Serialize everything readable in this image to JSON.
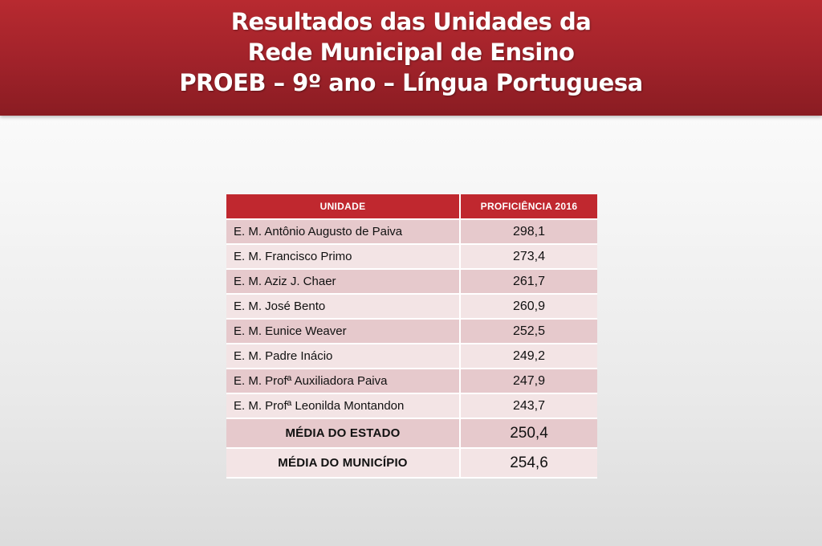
{
  "slide": {
    "title_lines": [
      "Resultados das Unidades da",
      "Rede Municipal de Ensino",
      "PROEB – 9º ano – Língua Portuguesa"
    ]
  },
  "table": {
    "headers": {
      "unit": "UNIDADE",
      "proficiency": "PROFICIÊNCIA 2016"
    },
    "rows": [
      {
        "unit": "E. M. Antônio Augusto de Paiva",
        "value": "298,1"
      },
      {
        "unit": "E. M. Francisco Primo",
        "value": "273,4"
      },
      {
        "unit": "E. M. Aziz J. Chaer",
        "value": "261,7"
      },
      {
        "unit": "E. M. José Bento",
        "value": "260,9"
      },
      {
        "unit": "E. M. Eunice Weaver",
        "value": "252,5"
      },
      {
        "unit": "E. M. Padre Inácio",
        "value": "249,2"
      },
      {
        "unit": "E. M. Profª Auxiliadora Paiva",
        "value": "247,9"
      },
      {
        "unit": "E. M. Profª Leonilda Montandon",
        "value": "243,7"
      }
    ],
    "state_average": {
      "label": "MÉDIA DO ESTADO",
      "value": "250,4"
    },
    "city_average": {
      "label": "MÉDIA DO MUNICÍPIO",
      "value": "254,6"
    }
  },
  "colors": {
    "banner": "#a0222a",
    "header_row": "#c0282f",
    "row_dark": "#e6c9cc",
    "row_light": "#f3e4e5"
  }
}
